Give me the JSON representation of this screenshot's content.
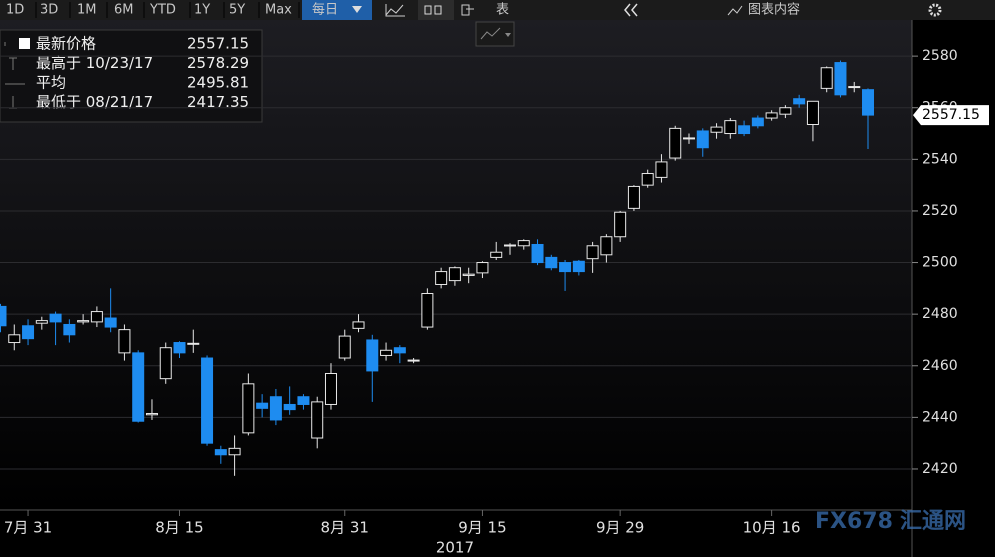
{
  "toolbar": {
    "ranges": [
      "1D",
      "3D",
      "1M",
      "6M",
      "YTD",
      "1Y",
      "5Y",
      "Max"
    ],
    "period": "每日",
    "table": "表",
    "chart_contents": "图表内容"
  },
  "chart_data": {
    "type": "candlestick",
    "categories": [
      null,
      null,
      "7月 31",
      null,
      null,
      null,
      null,
      null,
      null,
      null,
      null,
      null,
      null,
      "8月 15",
      null,
      null,
      null,
      null,
      null,
      null,
      null,
      null,
      null,
      null,
      null,
      "8月 31",
      null,
      null,
      null,
      null,
      null,
      null,
      null,
      null,
      null,
      "9月 15",
      null,
      null,
      null,
      null,
      null,
      null,
      null,
      null,
      null,
      "9月 29",
      null,
      null,
      null,
      null,
      null,
      null,
      null,
      null,
      null,
      null,
      "10月 16",
      null,
      null,
      null,
      null,
      null,
      null,
      null
    ],
    "year_label": "2017",
    "open": [
      2483,
      2469,
      2475.5,
      2476.5,
      2480,
      2476,
      2477,
      2477,
      2478.5,
      2465,
      2465,
      2441,
      2455,
      2469,
      2468.5,
      2463,
      2427.5,
      2425.5,
      2434,
      2445.5,
      2448,
      2445,
      2448,
      2432,
      2445,
      2463,
      2474.5,
      2470,
      2464,
      2467,
      2462,
      2475,
      2491.5,
      2493,
      2495,
      2496,
      2502,
      2506.5,
      2506.5,
      2507,
      2502,
      2500,
      2500.5,
      2501.5,
      2503,
      2510,
      2521,
      2530,
      2533,
      2540.5,
      2548,
      2551,
      2550.5,
      2550,
      2553,
      2556,
      2556,
      2557.5,
      2563.5,
      2553.5,
      2567.5,
      2577.5,
      2568,
      2567
    ],
    "high": [
      2484,
      2476,
      2478,
      2479,
      2481,
      2478,
      2480,
      2483,
      2490,
      2476,
      2466,
      2447,
      2469,
      2469.5,
      2474,
      2464,
      2429,
      2433,
      2457,
      2449,
      2451,
      2452,
      2449,
      2448,
      2461,
      2474,
      2480,
      2472,
      2469,
      2468,
      2463,
      2490,
      2498,
      2498.5,
      2498,
      2500.5,
      2508,
      2507.5,
      2509,
      2509,
      2503,
      2501,
      2501,
      2508,
      2511,
      2520,
      2530,
      2536,
      2542,
      2553,
      2550,
      2552,
      2554,
      2556,
      2555,
      2557,
      2559,
      2561,
      2565,
      2562.5,
      2576,
      2578.29,
      2570,
      2567.5
    ],
    "low": [
      2473,
      2466,
      2468,
      2474,
      2468,
      2469,
      2476,
      2475,
      2473,
      2462,
      2438,
      2439,
      2453,
      2463,
      2465,
      2429,
      2422,
      2417.35,
      2433,
      2440,
      2437,
      2441,
      2443,
      2428,
      2443,
      2462,
      2473,
      2446,
      2462,
      2461,
      2461,
      2474,
      2490,
      2491,
      2492,
      2494,
      2501,
      2503,
      2505,
      2499,
      2497,
      2489,
      2495,
      2496,
      2500,
      2508,
      2520,
      2529,
      2531,
      2539.5,
      2546,
      2541,
      2548,
      2548,
      2549,
      2552,
      2555,
      2556,
      2560,
      2547,
      2566,
      2564,
      2566,
      2544
    ],
    "close": [
      2475.5,
      2472,
      2470.5,
      2477.5,
      2477,
      2472,
      2477.5,
      2481,
      2475,
      2474,
      2438.5,
      2441.5,
      2467,
      2465,
      2468.7,
      2430,
      2425.5,
      2428,
      2453,
      2443.5,
      2439,
      2443,
      2445,
      2446,
      2457,
      2471.5,
      2477,
      2458,
      2466,
      2465,
      2462.2,
      2488,
      2496.5,
      2498,
      2495.5,
      2500,
      2504,
      2506.8,
      2508.5,
      2500,
      2498,
      2496.5,
      2496.5,
      2506.5,
      2510,
      2519.5,
      2529.5,
      2534.5,
      2539,
      2552,
      2548.3,
      2544.5,
      2552.5,
      2555,
      2550,
      2553,
      2558,
      2560,
      2561.5,
      2562.5,
      2575.5,
      2565,
      2568.2,
      2557.15
    ],
    "up_color": "#000000",
    "down_color": "#1e8cf0",
    "ylim": [
      2404.1,
      2594
    ],
    "yticks": [
      2420,
      2440,
      2460,
      2480,
      2500,
      2520,
      2540,
      2560,
      2580
    ],
    "grid": true,
    "stats": [
      {
        "label": "最新价格",
        "value": 2557.15
      },
      {
        "label": "最高于 10/23/17",
        "value": 2578.29
      },
      {
        "label": "平均",
        "value": 2495.81
      },
      {
        "label": "最低于 08/21/17",
        "value": 2417.35
      }
    ]
  },
  "watermark": [
    "FX678",
    "汇通网"
  ]
}
